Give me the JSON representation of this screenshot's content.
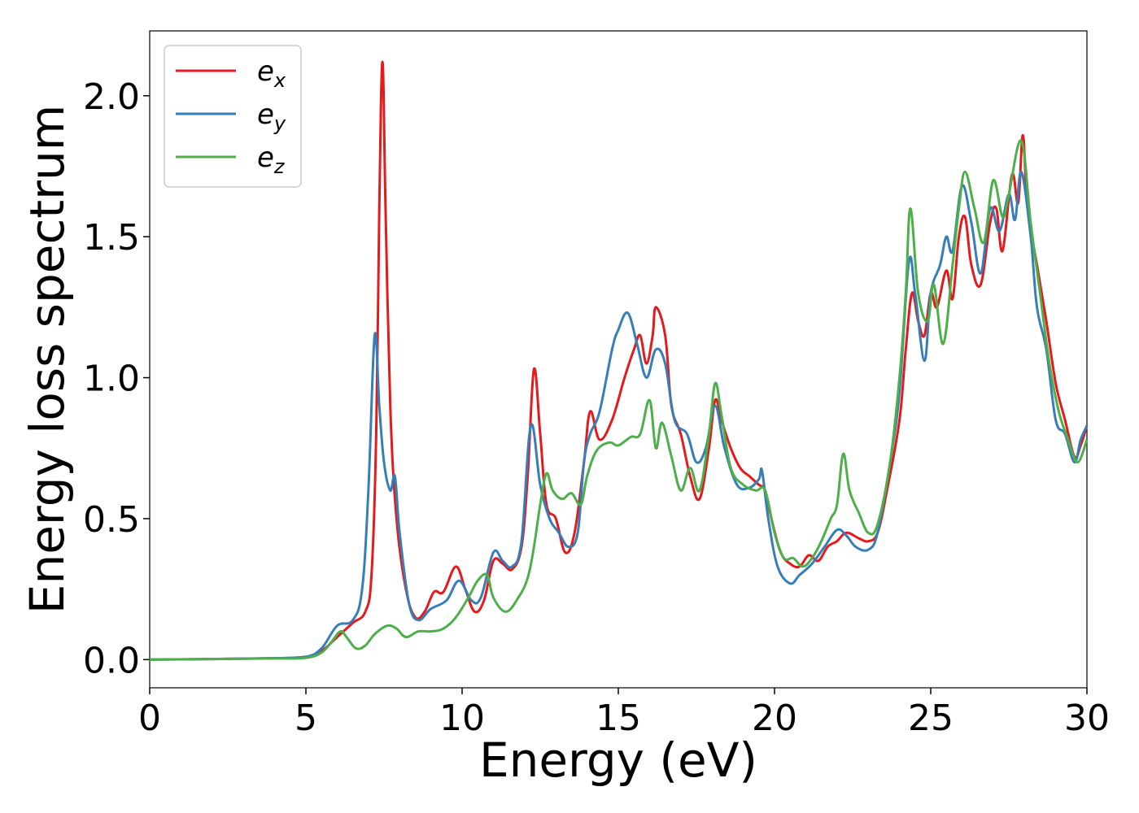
{
  "chart_data": {
    "type": "line",
    "title": "",
    "xlabel": "Energy (eV)",
    "ylabel": "Energy loss spectrum",
    "xlim": [
      0,
      30
    ],
    "ylim": [
      -0.1,
      2.23
    ],
    "xticks": [
      0,
      5,
      10,
      15,
      20,
      25,
      30
    ],
    "yticks": [
      0.0,
      0.5,
      1.0,
      1.5,
      2.0
    ],
    "xtick_labels": [
      "0",
      "5",
      "10",
      "15",
      "20",
      "25",
      "30"
    ],
    "ytick_labels": [
      "0.0",
      "0.5",
      "1.0",
      "1.5",
      "2.0"
    ],
    "grid": false,
    "legend_position": "top-left",
    "series": [
      {
        "name": "e_x",
        "label_base": "e",
        "label_sub": "x",
        "color": "#e41a1c",
        "points": [
          [
            0,
            0
          ],
          [
            2,
            0.002
          ],
          [
            4,
            0.005
          ],
          [
            5,
            0.01
          ],
          [
            5.5,
            0.03
          ],
          [
            6,
            0.08
          ],
          [
            6.5,
            0.13
          ],
          [
            6.9,
            0.17
          ],
          [
            7.1,
            0.3
          ],
          [
            7.25,
            0.8
          ],
          [
            7.35,
            1.6
          ],
          [
            7.45,
            2.12
          ],
          [
            7.55,
            1.6
          ],
          [
            7.7,
            0.9
          ],
          [
            7.9,
            0.5
          ],
          [
            8.2,
            0.25
          ],
          [
            8.5,
            0.15
          ],
          [
            8.8,
            0.17
          ],
          [
            9.1,
            0.24
          ],
          [
            9.4,
            0.24
          ],
          [
            9.8,
            0.33
          ],
          [
            10.1,
            0.25
          ],
          [
            10.4,
            0.17
          ],
          [
            10.7,
            0.21
          ],
          [
            11.0,
            0.35
          ],
          [
            11.3,
            0.34
          ],
          [
            11.6,
            0.32
          ],
          [
            11.9,
            0.4
          ],
          [
            12.1,
            0.65
          ],
          [
            12.3,
            1.03
          ],
          [
            12.5,
            0.8
          ],
          [
            12.7,
            0.55
          ],
          [
            13.0,
            0.5
          ],
          [
            13.3,
            0.38
          ],
          [
            13.6,
            0.45
          ],
          [
            13.9,
            0.7
          ],
          [
            14.1,
            0.88
          ],
          [
            14.4,
            0.78
          ],
          [
            14.8,
            0.85
          ],
          [
            15.2,
            1.0
          ],
          [
            15.5,
            1.1
          ],
          [
            15.7,
            1.15
          ],
          [
            15.9,
            1.05
          ],
          [
            16.1,
            1.15
          ],
          [
            16.2,
            1.25
          ],
          [
            16.5,
            1.15
          ],
          [
            16.7,
            0.9
          ],
          [
            17.0,
            0.8
          ],
          [
            17.3,
            0.65
          ],
          [
            17.6,
            0.57
          ],
          [
            17.9,
            0.75
          ],
          [
            18.1,
            0.92
          ],
          [
            18.3,
            0.85
          ],
          [
            18.6,
            0.75
          ],
          [
            18.9,
            0.68
          ],
          [
            19.2,
            0.65
          ],
          [
            19.5,
            0.62
          ],
          [
            19.7,
            0.6
          ],
          [
            19.9,
            0.5
          ],
          [
            20.2,
            0.38
          ],
          [
            20.5,
            0.34
          ],
          [
            20.8,
            0.33
          ],
          [
            21.1,
            0.37
          ],
          [
            21.4,
            0.35
          ],
          [
            21.7,
            0.4
          ],
          [
            22.0,
            0.42
          ],
          [
            22.3,
            0.45
          ],
          [
            22.7,
            0.43
          ],
          [
            23.0,
            0.42
          ],
          [
            23.3,
            0.45
          ],
          [
            23.6,
            0.6
          ],
          [
            24.0,
            0.85
          ],
          [
            24.2,
            1.1
          ],
          [
            24.4,
            1.3
          ],
          [
            24.6,
            1.2
          ],
          [
            24.8,
            1.15
          ],
          [
            25.0,
            1.3
          ],
          [
            25.2,
            1.25
          ],
          [
            25.5,
            1.38
          ],
          [
            25.7,
            1.28
          ],
          [
            25.9,
            1.5
          ],
          [
            26.1,
            1.57
          ],
          [
            26.3,
            1.4
          ],
          [
            26.6,
            1.33
          ],
          [
            26.9,
            1.55
          ],
          [
            27.1,
            1.6
          ],
          [
            27.3,
            1.45
          ],
          [
            27.6,
            1.72
          ],
          [
            27.8,
            1.62
          ],
          [
            27.95,
            1.86
          ],
          [
            28.1,
            1.6
          ],
          [
            28.4,
            1.4
          ],
          [
            28.7,
            1.2
          ],
          [
            29.0,
            0.98
          ],
          [
            29.3,
            0.85
          ],
          [
            29.6,
            0.72
          ],
          [
            29.8,
            0.76
          ],
          [
            30,
            0.83
          ]
        ]
      },
      {
        "name": "e_y",
        "label_base": "e",
        "label_sub": "y",
        "color": "#377eb8",
        "points": [
          [
            0,
            0
          ],
          [
            2,
            0.002
          ],
          [
            4,
            0.005
          ],
          [
            5,
            0.01
          ],
          [
            5.5,
            0.04
          ],
          [
            6,
            0.12
          ],
          [
            6.5,
            0.14
          ],
          [
            6.8,
            0.25
          ],
          [
            7.0,
            0.6
          ],
          [
            7.2,
            1.15
          ],
          [
            7.35,
            0.9
          ],
          [
            7.5,
            0.7
          ],
          [
            7.7,
            0.6
          ],
          [
            7.85,
            0.65
          ],
          [
            8.0,
            0.45
          ],
          [
            8.3,
            0.2
          ],
          [
            8.6,
            0.14
          ],
          [
            9.0,
            0.18
          ],
          [
            9.5,
            0.21
          ],
          [
            9.9,
            0.28
          ],
          [
            10.3,
            0.21
          ],
          [
            10.6,
            0.22
          ],
          [
            11.0,
            0.38
          ],
          [
            11.3,
            0.35
          ],
          [
            11.6,
            0.33
          ],
          [
            11.9,
            0.42
          ],
          [
            12.2,
            0.83
          ],
          [
            12.5,
            0.62
          ],
          [
            12.8,
            0.5
          ],
          [
            13.1,
            0.45
          ],
          [
            13.4,
            0.4
          ],
          [
            13.7,
            0.45
          ],
          [
            13.9,
            0.7
          ],
          [
            14.1,
            0.8
          ],
          [
            14.4,
            0.88
          ],
          [
            14.8,
            1.1
          ],
          [
            15.0,
            1.17
          ],
          [
            15.3,
            1.23
          ],
          [
            15.6,
            1.12
          ],
          [
            15.9,
            1.0
          ],
          [
            16.2,
            1.1
          ],
          [
            16.5,
            1.05
          ],
          [
            16.8,
            0.85
          ],
          [
            17.2,
            0.8
          ],
          [
            17.5,
            0.7
          ],
          [
            17.8,
            0.75
          ],
          [
            18.1,
            0.9
          ],
          [
            18.4,
            0.75
          ],
          [
            18.8,
            0.62
          ],
          [
            19.2,
            0.61
          ],
          [
            19.5,
            0.64
          ],
          [
            19.6,
            0.67
          ],
          [
            19.8,
            0.5
          ],
          [
            20.1,
            0.33
          ],
          [
            20.5,
            0.27
          ],
          [
            20.8,
            0.3
          ],
          [
            21.2,
            0.34
          ],
          [
            21.6,
            0.4
          ],
          [
            22.0,
            0.46
          ],
          [
            22.3,
            0.44
          ],
          [
            22.6,
            0.4
          ],
          [
            23.0,
            0.39
          ],
          [
            23.3,
            0.45
          ],
          [
            23.7,
            0.7
          ],
          [
            24.0,
            0.95
          ],
          [
            24.3,
            1.41
          ],
          [
            24.5,
            1.3
          ],
          [
            24.8,
            1.06
          ],
          [
            25.0,
            1.3
          ],
          [
            25.3,
            1.4
          ],
          [
            25.5,
            1.5
          ],
          [
            25.7,
            1.45
          ],
          [
            26.0,
            1.68
          ],
          [
            26.3,
            1.55
          ],
          [
            26.6,
            1.37
          ],
          [
            26.9,
            1.6
          ],
          [
            27.2,
            1.52
          ],
          [
            27.5,
            1.65
          ],
          [
            27.7,
            1.56
          ],
          [
            27.9,
            1.73
          ],
          [
            28.2,
            1.5
          ],
          [
            28.4,
            1.25
          ],
          [
            28.7,
            1.1
          ],
          [
            29.0,
            0.85
          ],
          [
            29.3,
            0.8
          ],
          [
            29.6,
            0.7
          ],
          [
            29.8,
            0.78
          ],
          [
            30,
            0.83
          ]
        ]
      },
      {
        "name": "e_z",
        "label_base": "e",
        "label_sub": "z",
        "color": "#4daf4a",
        "points": [
          [
            0,
            0
          ],
          [
            2,
            0.002
          ],
          [
            4,
            0.004
          ],
          [
            5,
            0.006
          ],
          [
            5.5,
            0.025
          ],
          [
            5.8,
            0.06
          ],
          [
            6.1,
            0.1
          ],
          [
            6.3,
            0.08
          ],
          [
            6.6,
            0.04
          ],
          [
            6.9,
            0.05
          ],
          [
            7.2,
            0.09
          ],
          [
            7.6,
            0.12
          ],
          [
            7.9,
            0.11
          ],
          [
            8.2,
            0.08
          ],
          [
            8.6,
            0.1
          ],
          [
            9.0,
            0.1
          ],
          [
            9.4,
            0.11
          ],
          [
            9.8,
            0.15
          ],
          [
            10.2,
            0.22
          ],
          [
            10.5,
            0.28
          ],
          [
            10.8,
            0.3
          ],
          [
            11.0,
            0.22
          ],
          [
            11.4,
            0.17
          ],
          [
            11.8,
            0.22
          ],
          [
            12.1,
            0.29
          ],
          [
            12.3,
            0.4
          ],
          [
            12.5,
            0.55
          ],
          [
            12.7,
            0.66
          ],
          [
            12.9,
            0.6
          ],
          [
            13.2,
            0.57
          ],
          [
            13.5,
            0.59
          ],
          [
            13.8,
            0.55
          ],
          [
            14.0,
            0.65
          ],
          [
            14.3,
            0.74
          ],
          [
            14.7,
            0.77
          ],
          [
            15.0,
            0.76
          ],
          [
            15.4,
            0.79
          ],
          [
            15.7,
            0.8
          ],
          [
            16.0,
            0.92
          ],
          [
            16.2,
            0.75
          ],
          [
            16.4,
            0.84
          ],
          [
            16.7,
            0.72
          ],
          [
            17.0,
            0.6
          ],
          [
            17.3,
            0.68
          ],
          [
            17.6,
            0.6
          ],
          [
            17.9,
            0.8
          ],
          [
            18.1,
            0.98
          ],
          [
            18.3,
            0.87
          ],
          [
            18.6,
            0.68
          ],
          [
            19.0,
            0.62
          ],
          [
            19.4,
            0.6
          ],
          [
            19.7,
            0.6
          ],
          [
            20.0,
            0.45
          ],
          [
            20.3,
            0.36
          ],
          [
            20.6,
            0.36
          ],
          [
            20.9,
            0.33
          ],
          [
            21.2,
            0.36
          ],
          [
            21.5,
            0.42
          ],
          [
            21.8,
            0.5
          ],
          [
            22.0,
            0.55
          ],
          [
            22.2,
            0.73
          ],
          [
            22.4,
            0.6
          ],
          [
            22.7,
            0.52
          ],
          [
            23.0,
            0.45
          ],
          [
            23.3,
            0.48
          ],
          [
            23.7,
            0.7
          ],
          [
            24.0,
            1.0
          ],
          [
            24.2,
            1.3
          ],
          [
            24.35,
            1.6
          ],
          [
            24.6,
            1.3
          ],
          [
            24.9,
            1.2
          ],
          [
            25.1,
            1.33
          ],
          [
            25.4,
            1.12
          ],
          [
            25.7,
            1.4
          ],
          [
            25.9,
            1.6
          ],
          [
            26.1,
            1.73
          ],
          [
            26.4,
            1.6
          ],
          [
            26.7,
            1.48
          ],
          [
            27.0,
            1.7
          ],
          [
            27.3,
            1.57
          ],
          [
            27.5,
            1.65
          ],
          [
            27.9,
            1.84
          ],
          [
            28.2,
            1.55
          ],
          [
            28.5,
            1.3
          ],
          [
            28.8,
            1.05
          ],
          [
            29.1,
            0.88
          ],
          [
            29.4,
            0.78
          ],
          [
            29.7,
            0.7
          ],
          [
            30,
            0.78
          ]
        ]
      }
    ]
  }
}
